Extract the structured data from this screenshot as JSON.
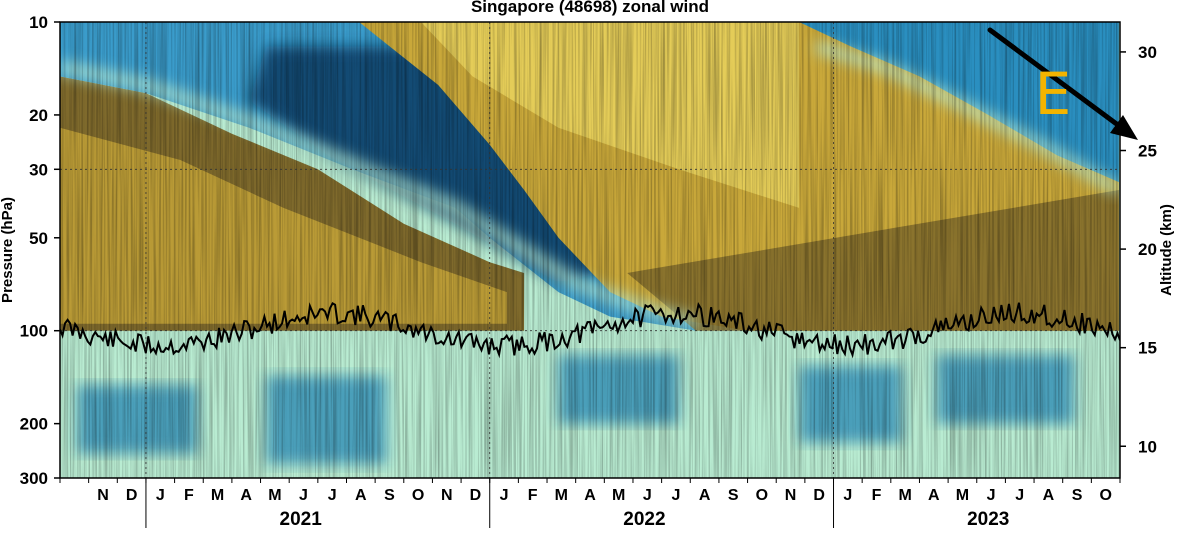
{
  "chart_data": {
    "type": "heatmap",
    "title": "Singapore (48698) zonal wind",
    "ylabel_left": "Pressure (hPa)",
    "ylabel_right": "Altitude (km)",
    "pressure_axis": {
      "scale": "log",
      "range_hPa": [
        300,
        10
      ],
      "ticks": [
        10,
        20,
        30,
        50,
        100,
        200,
        300
      ]
    },
    "altitude_axis": {
      "unit": "km",
      "ticks": [
        10,
        15,
        20,
        25,
        30
      ]
    },
    "time_axis": {
      "range": [
        "2020-10-01",
        "2023-10-31"
      ],
      "months": [
        "N",
        "D",
        "J",
        "F",
        "M",
        "A",
        "M",
        "J",
        "J",
        "A",
        "S",
        "O",
        "N",
        "D",
        "J",
        "F",
        "M",
        "A",
        "M",
        "J",
        "J",
        "A",
        "S",
        "O",
        "N",
        "D",
        "J",
        "F",
        "M",
        "A",
        "M",
        "J",
        "J",
        "A",
        "S",
        "O"
      ],
      "years": [
        {
          "label": "2021",
          "center_month": "2021-06"
        },
        {
          "label": "2022",
          "center_month": "2022-06"
        },
        {
          "label": "2023",
          "center_month": "2023-06"
        }
      ]
    },
    "grid": {
      "dotted": true,
      "pressure_levels_hPa": [
        30,
        100
      ],
      "year_boundaries": true
    },
    "colors": {
      "westerly": "#c9a83a",
      "westerly_light": "#e7cf5c",
      "westerly_dark": "#7f6a2c",
      "easterly": "#1c7fb0",
      "easterly_dark": "#0a3d66",
      "weak": "#b9ecd2",
      "transition": "#2fa8b8"
    },
    "regimes": [
      {
        "name": "easterly",
        "descending": true,
        "top_hPa_start": 10,
        "bottom_hPa_path": [
          [
            2020.75,
            17
          ],
          [
            2021.25,
            30
          ],
          [
            2021.75,
            50
          ],
          [
            2022.2,
            80
          ],
          [
            2022.6,
            100
          ]
        ]
      },
      {
        "name": "westerly",
        "descending": true,
        "bottom_hPa_path": [
          [
            2020.75,
            100
          ],
          [
            2021.5,
            100
          ],
          [
            2022.2,
            100
          ],
          [
            2022.8,
            100
          ],
          [
            2023.8,
            100
          ]
        ]
      },
      {
        "name": "easterly",
        "descending": true,
        "bottom_hPa_path": [
          [
            2022.95,
            12
          ],
          [
            2023.3,
            17
          ],
          [
            2023.6,
            25
          ],
          [
            2023.83,
            35
          ]
        ]
      }
    ],
    "tropopause_line": {
      "color": "#000000",
      "approx_pressure_hPa": 100
    },
    "annotation": {
      "text": "E",
      "color": "#f3b400",
      "arrow_color": "#000000",
      "meaning": "descending easterly regime"
    }
  }
}
